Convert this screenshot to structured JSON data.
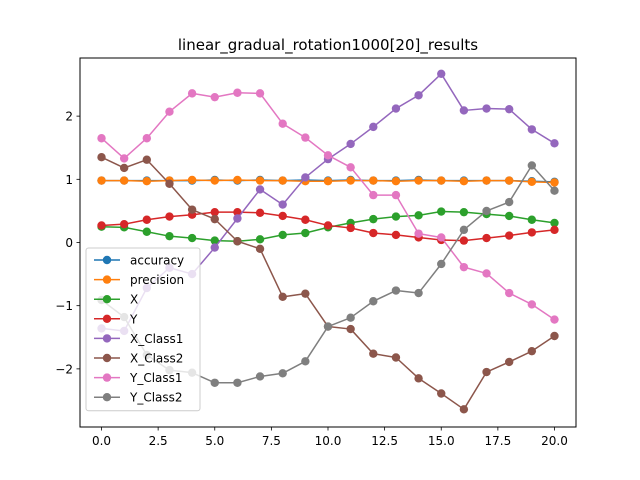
{
  "chart_data": {
    "type": "line",
    "title": "linear_gradual_rotation1000[20]_results",
    "xlabel": "",
    "ylabel": "",
    "xlim": [
      -0.95,
      20.95
    ],
    "ylim": [
      -2.92,
      2.92
    ],
    "xticks": [
      0.0,
      2.5,
      5.0,
      7.5,
      10.0,
      12.5,
      15.0,
      17.5,
      20.0
    ],
    "xtick_labels": [
      "0.0",
      "2.5",
      "5.0",
      "7.5",
      "10.0",
      "12.5",
      "15.0",
      "17.5",
      "20.0"
    ],
    "yticks": [
      -2,
      -1,
      0,
      1,
      2
    ],
    "ytick_labels": [
      "−2",
      "−1",
      "0",
      "1",
      "2"
    ],
    "grid": false,
    "legend_position": "lower-left",
    "x": [
      0,
      1,
      2,
      3,
      4,
      5,
      6,
      7,
      8,
      9,
      10,
      11,
      12,
      13,
      14,
      15,
      16,
      17,
      18,
      19,
      20
    ],
    "series": [
      {
        "name": "accuracy",
        "color": "#1f77b4",
        "values": [
          0.98,
          0.98,
          0.98,
          0.98,
          0.98,
          0.99,
          0.98,
          0.99,
          0.98,
          0.99,
          0.98,
          0.99,
          0.98,
          0.98,
          0.99,
          0.98,
          0.98,
          0.98,
          0.98,
          0.97,
          0.96
        ]
      },
      {
        "name": "precision",
        "color": "#ff7f0e",
        "values": [
          0.98,
          0.98,
          0.97,
          0.98,
          0.99,
          0.98,
          0.99,
          0.98,
          0.98,
          0.97,
          0.97,
          0.98,
          0.98,
          0.97,
          0.98,
          0.98,
          0.97,
          0.98,
          0.98,
          0.96,
          0.95
        ]
      },
      {
        "name": "X",
        "color": "#2ca02c",
        "values": [
          0.25,
          0.24,
          0.17,
          0.1,
          0.07,
          0.03,
          0.02,
          0.05,
          0.12,
          0.15,
          0.24,
          0.31,
          0.37,
          0.41,
          0.43,
          0.49,
          0.48,
          0.45,
          0.42,
          0.36,
          0.31
        ]
      },
      {
        "name": "Y",
        "color": "#d62728",
        "values": [
          0.27,
          0.29,
          0.36,
          0.41,
          0.44,
          0.48,
          0.48,
          0.47,
          0.42,
          0.36,
          0.27,
          0.23,
          0.15,
          0.12,
          0.08,
          0.04,
          0.03,
          0.07,
          0.11,
          0.16,
          0.2
        ]
      },
      {
        "name": "X_Class1",
        "color": "#9467bd",
        "values": [
          -1.36,
          -1.4,
          -0.72,
          -0.4,
          -0.5,
          -0.08,
          0.38,
          0.84,
          0.6,
          1.03,
          1.32,
          1.56,
          1.83,
          2.12,
          2.33,
          2.67,
          2.09,
          2.12,
          2.11,
          1.79,
          1.57
        ]
      },
      {
        "name": "X_Class2",
        "color": "#8c564b",
        "values": [
          1.35,
          1.18,
          1.31,
          0.93,
          0.52,
          0.37,
          0.02,
          -0.1,
          -0.86,
          -0.81,
          -1.33,
          -1.37,
          -1.76,
          -1.82,
          -2.15,
          -2.39,
          -2.64,
          -2.05,
          -1.89,
          -1.72,
          -1.48
        ]
      },
      {
        "name": "Y_Class1",
        "color": "#e377c2",
        "values": [
          1.65,
          1.33,
          1.65,
          2.07,
          2.36,
          2.3,
          2.37,
          2.36,
          1.88,
          1.66,
          1.38,
          1.19,
          0.75,
          0.75,
          0.14,
          0.08,
          -0.39,
          -0.49,
          -0.8,
          -0.98,
          -1.22
        ]
      },
      {
        "name": "Y_Class2",
        "color": "#7f7f7f",
        "values": [
          -0.91,
          -1.18,
          -1.78,
          -2.02,
          -2.06,
          -2.22,
          -2.22,
          -2.12,
          -2.07,
          -1.88,
          -1.33,
          -1.19,
          -0.93,
          -0.76,
          -0.8,
          -0.34,
          0.2,
          0.5,
          0.64,
          1.22,
          0.82
        ]
      }
    ]
  }
}
